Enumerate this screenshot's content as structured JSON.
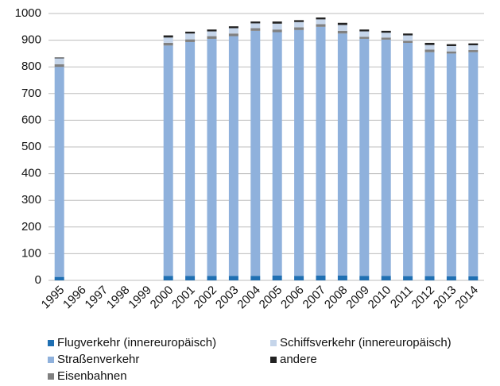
{
  "chart_data": {
    "type": "stacked_bar",
    "categories": [
      "1995",
      "1996",
      "1997",
      "1998",
      "1999",
      "2000",
      "2001",
      "2002",
      "2003",
      "2004",
      "2005",
      "2006",
      "2007",
      "2008",
      "2009",
      "2010",
      "2011",
      "2012",
      "2013",
      "2014"
    ],
    "series": [
      {
        "name": "Flugverkehr (innereuropäisch)",
        "color": "#1f6fb2",
        "values": [
          13,
          null,
          null,
          null,
          null,
          17,
          17,
          17,
          17,
          17,
          18,
          17,
          18,
          18,
          17,
          17,
          16,
          16,
          15,
          15
        ]
      },
      {
        "name": "Straßenverkehr",
        "color": "#8fb1dc",
        "values": [
          787,
          null,
          null,
          null,
          null,
          863,
          876,
          888,
          898,
          918,
          912,
          921,
          932,
          907,
          888,
          885,
          874,
          839,
          835,
          840
        ]
      },
      {
        "name": "Eisenbahnen",
        "color": "#808080",
        "values": [
          10,
          null,
          null,
          null,
          null,
          10,
          10,
          10,
          10,
          10,
          10,
          10,
          10,
          10,
          8,
          8,
          8,
          10,
          8,
          8
        ]
      },
      {
        "name": "Schiffsverkehr (innereuropäisch)",
        "color": "#c5d5ea",
        "values": [
          22,
          null,
          null,
          null,
          null,
          20,
          22,
          18,
          20,
          18,
          22,
          20,
          18,
          22,
          20,
          18,
          20,
          17,
          20,
          18
        ]
      },
      {
        "name": "andere",
        "color": "#222222",
        "values": [
          3,
          null,
          null,
          null,
          null,
          8,
          7,
          7,
          7,
          7,
          8,
          7,
          7,
          8,
          7,
          7,
          7,
          8,
          7,
          7
        ]
      }
    ],
    "ylim": [
      0,
      1000
    ],
    "yticks": [
      0,
      100,
      200,
      300,
      400,
      500,
      600,
      700,
      800,
      900,
      1000
    ],
    "grid": true
  }
}
